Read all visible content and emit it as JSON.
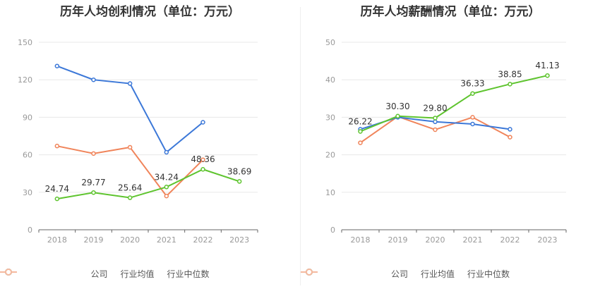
{
  "colors": {
    "company": "#5ec42e",
    "industry_avg": "#3c78d8",
    "industry_median": "#f0845a",
    "grid": "#e8e8e8",
    "axis": "#999999"
  },
  "legend": {
    "company": "公司",
    "industry_avg": "行业均值",
    "industry_median": "行业中位数"
  },
  "chart_data": [
    {
      "type": "line",
      "title": "历年人均创利情况（单位：万元）",
      "categories": [
        "2018",
        "2019",
        "2020",
        "2021",
        "2022",
        "2023"
      ],
      "ylim": [
        0,
        150
      ],
      "yticks": [
        "0",
        "30",
        "60",
        "90",
        "120",
        "150"
      ],
      "grid": true,
      "legend_position": "bottom",
      "series": [
        {
          "name": "公司",
          "key": "company",
          "values": [
            24.74,
            29.77,
            25.64,
            34.24,
            48.36,
            38.69
          ],
          "labels": [
            "24.74",
            "29.77",
            "25.64",
            "34.24",
            "48.36",
            "38.69"
          ]
        },
        {
          "name": "行业均值",
          "key": "industry_avg",
          "values": [
            131,
            120,
            117,
            62,
            86,
            null
          ]
        },
        {
          "name": "行业中位数",
          "key": "industry_median",
          "values": [
            67,
            61,
            66,
            27,
            56,
            null
          ]
        }
      ]
    },
    {
      "type": "line",
      "title": "历年人均薪酬情况（单位：万元）",
      "categories": [
        "2018",
        "2019",
        "2020",
        "2021",
        "2022",
        "2023"
      ],
      "ylim": [
        0,
        50
      ],
      "yticks": [
        "0",
        "10",
        "20",
        "30",
        "40",
        "50"
      ],
      "grid": true,
      "legend_position": "bottom",
      "series": [
        {
          "name": "公司",
          "key": "company",
          "values": [
            26.22,
            30.3,
            29.8,
            36.33,
            38.85,
            41.13
          ],
          "labels": [
            "26.22",
            "30.30",
            "29.80",
            "36.33",
            "38.85",
            "41.13"
          ]
        },
        {
          "name": "行业均值",
          "key": "industry_avg",
          "values": [
            26.8,
            30.0,
            28.8,
            28.2,
            26.8,
            null
          ]
        },
        {
          "name": "行业中位数",
          "key": "industry_median",
          "values": [
            23.2,
            30.2,
            26.7,
            30.0,
            24.7,
            null
          ]
        }
      ]
    }
  ]
}
